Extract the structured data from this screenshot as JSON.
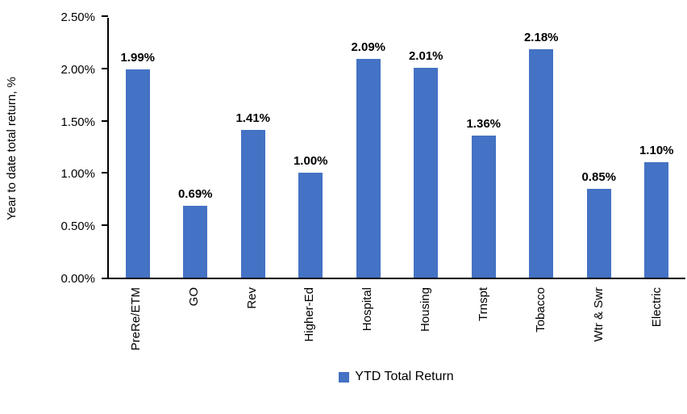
{
  "chart_data": {
    "type": "bar",
    "title": "",
    "xlabel": "",
    "ylabel": "Year to date total return, %",
    "categories": [
      "PreRe/ETM",
      "GO",
      "Rev",
      "Higher-Ed",
      "Hospital",
      "Housing",
      "Trnspt",
      "Tobacco",
      "Wtr & Swr",
      "Electric"
    ],
    "values": [
      1.99,
      0.69,
      1.41,
      1.0,
      2.09,
      2.01,
      1.36,
      2.18,
      0.85,
      1.1
    ],
    "data_labels": [
      "1.99%",
      "0.69%",
      "1.41%",
      "1.00%",
      "2.09%",
      "2.01%",
      "1.36%",
      "2.18%",
      "0.85%",
      "1.10%"
    ],
    "ylim": [
      0,
      2.5
    ],
    "y_tick_values": [
      0,
      0.5,
      1.0,
      1.5,
      2.0,
      2.5
    ],
    "y_tick_labels": [
      "0.00%",
      "0.50%",
      "1.00%",
      "1.50%",
      "2.00%",
      "2.50%"
    ],
    "grid": false,
    "legend_position": "bottom",
    "bar_color": "#4472C4",
    "axis_color": "#000000",
    "legend": [
      {
        "label": "YTD Total Return",
        "color": "#4472C4"
      }
    ]
  }
}
